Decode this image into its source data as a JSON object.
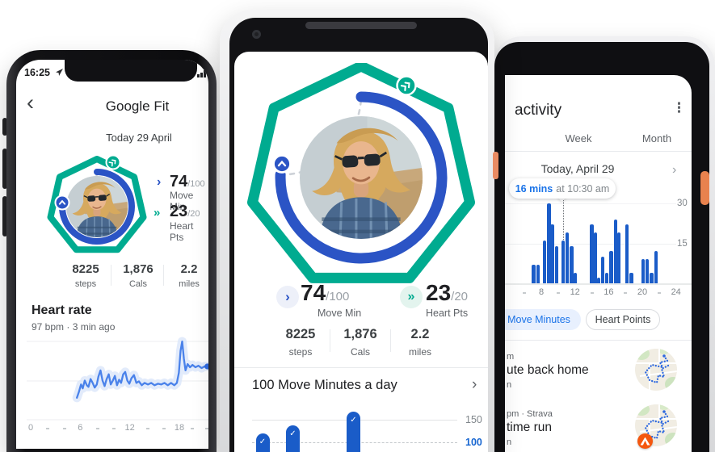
{
  "left_phone": {
    "status_bar": {
      "time": "16:25"
    },
    "header": {
      "back_icon": "‹",
      "title": "Google Fit"
    },
    "date_heading": "Today 29 April",
    "goals": {
      "move": {
        "chevron": "›",
        "value": "74",
        "target": "/100",
        "label": "Move Min"
      },
      "heart": {
        "chevron": "»",
        "value": "23",
        "target": "/20",
        "label": "Heart Pts"
      }
    },
    "stats": [
      {
        "value": "8225",
        "label": "steps"
      },
      {
        "value": "1,876",
        "label": "Cals"
      },
      {
        "value": "2.2",
        "label": "miles"
      }
    ],
    "heart_rate_section": {
      "title": "Heart rate",
      "subtitle": "97 bpm · 3 min ago"
    }
  },
  "center_phone": {
    "goals": {
      "move": {
        "chevron": "›",
        "value": "74",
        "target": "/100",
        "label": "Move Min"
      },
      "heart": {
        "chevron": "»",
        "value": "23",
        "target": "/20",
        "label": "Heart Pts"
      }
    },
    "stats": [
      {
        "value": "8225",
        "label": "steps"
      },
      {
        "value": "1,876",
        "label": "Cals"
      },
      {
        "value": "2.2",
        "label": "miles"
      }
    ],
    "goal_chart": {
      "title": "100 Move Minutes a day",
      "chevron": "›",
      "check_icon": "✓"
    }
  },
  "right_phone": {
    "header": {
      "title": "activity",
      "menu_icon": "⋮"
    },
    "tabs": [
      {
        "label": "Week"
      },
      {
        "label": "Month"
      }
    ],
    "day_card": {
      "title": "Today, April 29",
      "chevron": "›"
    },
    "tooltip": {
      "value": "16 mins",
      "time": "at 10:30 am"
    },
    "chips": [
      {
        "label": "Move Minutes",
        "selected": true
      },
      {
        "label": "Heart Points",
        "selected": false
      }
    ],
    "sessions": [
      {
        "time": "m",
        "title": "ute back home",
        "subtitle": "n"
      },
      {
        "time": "pm · Strava",
        "title": "time run",
        "subtitle": "n"
      }
    ]
  },
  "chart_data": [
    {
      "id": "heart-rate-line",
      "type": "line",
      "title": "Heart rate",
      "subtitle": "97 bpm · 3 min ago",
      "x_ticks": [
        "0",
        "6",
        "12",
        "18"
      ],
      "x_range_hours": [
        0,
        24
      ],
      "y_axis": "unlabeled, relative scale 0-100 between bottom and top gridline",
      "points": [
        [
          5.6,
          28
        ],
        [
          5.85,
          36
        ],
        [
          6.1,
          45
        ],
        [
          6.3,
          40
        ],
        [
          6.55,
          50
        ],
        [
          6.8,
          44
        ],
        [
          7.0,
          42
        ],
        [
          7.25,
          52
        ],
        [
          7.5,
          47
        ],
        [
          7.75,
          41
        ],
        [
          8.0,
          45
        ],
        [
          8.2,
          55
        ],
        [
          8.45,
          63
        ],
        [
          8.7,
          50
        ],
        [
          8.95,
          43
        ],
        [
          9.2,
          52
        ],
        [
          9.45,
          58
        ],
        [
          9.7,
          45
        ],
        [
          9.95,
          50
        ],
        [
          10.2,
          56
        ],
        [
          10.45,
          44
        ],
        [
          10.7,
          51
        ],
        [
          10.95,
          47
        ],
        [
          11.2,
          58
        ],
        [
          11.45,
          61
        ],
        [
          11.7,
          50
        ],
        [
          11.95,
          46
        ],
        [
          12.2,
          53
        ],
        [
          12.5,
          57
        ],
        [
          12.8,
          47
        ],
        [
          13.1,
          49
        ],
        [
          13.45,
          44
        ],
        [
          13.8,
          47
        ],
        [
          14.2,
          45
        ],
        [
          14.6,
          47
        ],
        [
          15.0,
          44
        ],
        [
          15.4,
          46
        ],
        [
          15.8,
          45
        ],
        [
          16.2,
          47
        ],
        [
          16.6,
          44
        ],
        [
          17.0,
          47
        ],
        [
          17.4,
          44
        ],
        [
          17.7,
          47
        ],
        [
          17.95,
          60
        ],
        [
          18.15,
          88
        ],
        [
          18.35,
          100
        ],
        [
          18.55,
          78
        ],
        [
          18.75,
          63
        ],
        [
          19.0,
          71
        ],
        [
          19.3,
          67
        ],
        [
          19.6,
          70
        ],
        [
          19.95,
          67
        ],
        [
          20.3,
          69
        ],
        [
          20.7,
          66
        ],
        [
          21.05,
          68
        ],
        [
          21.4,
          68
        ]
      ]
    },
    {
      "id": "hourly-move-minutes",
      "type": "bar",
      "y_ticks": [
        "30",
        "15"
      ],
      "ylim": [
        0,
        32
      ],
      "x_ticks": [
        "8",
        "12",
        "16",
        "20",
        "24"
      ],
      "highlight": {
        "hour": 10.5,
        "value_label": "16 mins",
        "time_label": "at 10:30 am"
      },
      "bars": [
        [
          7.1,
          7
        ],
        [
          7.6,
          7
        ],
        [
          8.4,
          16
        ],
        [
          8.9,
          30
        ],
        [
          9.3,
          22
        ],
        [
          9.8,
          14
        ],
        [
          10.6,
          16
        ],
        [
          11.1,
          19
        ],
        [
          11.6,
          14
        ],
        [
          12.0,
          4
        ],
        [
          14.0,
          22
        ],
        [
          14.4,
          19
        ],
        [
          14.8,
          2
        ],
        [
          15.3,
          10
        ],
        [
          15.8,
          4
        ],
        [
          16.3,
          12
        ],
        [
          16.8,
          24
        ],
        [
          17.2,
          19
        ],
        [
          18.2,
          22
        ],
        [
          18.7,
          4
        ],
        [
          20.1,
          9
        ],
        [
          20.6,
          9
        ],
        [
          21.1,
          4
        ],
        [
          21.6,
          12
        ]
      ]
    },
    {
      "id": "daily-move-minutes",
      "type": "bar",
      "title": "100 Move Minutes a day",
      "gridlines": [
        150,
        100
      ],
      "goal": 100,
      "checkmarks": true,
      "bars": [
        [
          0,
          120
        ],
        [
          1,
          137
        ],
        [
          3,
          168
        ]
      ]
    }
  ]
}
